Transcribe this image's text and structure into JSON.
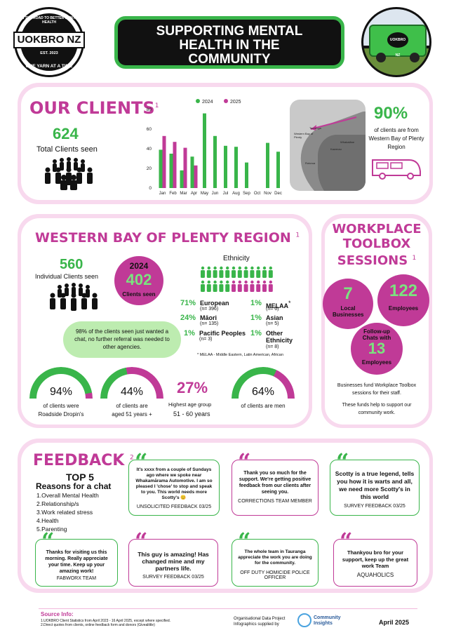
{
  "header": {
    "logo": {
      "name": "UOKBRO NZ",
      "arc_top": "ON THE ROAD TO BETTER MENTAL HEALTH",
      "est": "EST.",
      "year": "2023",
      "tagline": "ONE YARN AT A TIME"
    },
    "title": [
      "SUPPORTING MENTAL",
      "HEALTH IN THE",
      "COMMUNITY"
    ],
    "van_badge": "UOKBRO NZ"
  },
  "our_clients": {
    "title": "OUR CLIENTS",
    "footnote": "1",
    "total": "624",
    "total_label": "Total Clients seen",
    "pct": "90%",
    "pct_label": "of clients are from Western Bay of Plenty Region",
    "map_labels": [
      "Tauranga",
      "Western Bay of Plenty",
      "Rotorua",
      "Whakatāne",
      "Kawerau"
    ]
  },
  "chart_data": {
    "type": "bar",
    "categories": [
      "Jan",
      "Feb",
      "Mar",
      "Apr",
      "May",
      "Jun",
      "Jul",
      "Aug",
      "Sep",
      "Oct",
      "Nov",
      "Dec"
    ],
    "series": [
      {
        "name": "2024",
        "values": [
          39,
          35,
          18,
          32,
          76,
          53,
          43,
          42,
          26,
          0,
          46,
          37
        ]
      },
      {
        "name": "2025",
        "values": [
          53,
          47,
          41,
          23,
          null,
          null,
          null,
          null,
          null,
          null,
          null,
          null
        ]
      }
    ],
    "yticks": [
      0,
      20,
      40,
      60,
      80
    ],
    "ylim": [
      0,
      80
    ],
    "legend_position": "top",
    "colors": {
      "2024": "#39b54a",
      "2025": "#c03a97"
    }
  },
  "western_bay": {
    "title": "WESTERN BAY OF PLENTY REGION",
    "footnote": "1",
    "individual": "560",
    "individual_label": "Individual Clients seen",
    "year_circle": {
      "year": "2024",
      "value": "402",
      "label": "Clients seen"
    },
    "bubble": "98% of the clients seen just wanted a chat, no further referral was needed to other agencies.",
    "ethnicity_title": "Ethnicity",
    "ethnicity": [
      {
        "pct": "71%",
        "name": "European",
        "n": "(n= 396)"
      },
      {
        "pct": "24%",
        "name": "Māori",
        "n": "(n= 135)"
      },
      {
        "pct": "1%",
        "name": "Pacific Peoples",
        "n": "(n= 3)"
      },
      {
        "pct": "1%",
        "name": "MELAA",
        "n": "(n= 6)"
      },
      {
        "pct": "1%",
        "name": "Asian",
        "n": "(n= 5)"
      },
      {
        "pct": "1%",
        "name": "Other Ethnicity",
        "n": "(n= 8)"
      }
    ],
    "melaa_mark": "*",
    "ethnicity_note": "* MELAA - Middle Eastern, Latin American, African",
    "donuts": [
      {
        "value": "94%",
        "fraction": 0.94,
        "label1": "of clients were",
        "label2": "Roadside Dropin's"
      },
      {
        "value": "44%",
        "fraction": 0.44,
        "label1": "of clients are",
        "label2": "aged 51 years +"
      },
      {
        "value": "64%",
        "fraction": 0.64,
        "label1": "of clients are men",
        "label2": ""
      }
    ],
    "age": {
      "value": "27%",
      "label": "Highest age group",
      "range": "51 - 60 years"
    }
  },
  "workplace": {
    "title": "WORKPLACE TOOLBOX SESSIONS",
    "footnote": "1",
    "businesses": {
      "value": "7",
      "label": "Local Businesses"
    },
    "employees": {
      "value": "122",
      "label": "Employees"
    },
    "followup": {
      "label_top": "Follow-up Chats with",
      "value": "13",
      "label": "Employees"
    },
    "note1": "Businesses fund Workplace Toolbox sessions for their staff.",
    "note2": "These funds help to support our community work."
  },
  "feedback": {
    "title": "FEEDBACK",
    "footnote": "2",
    "top5_title": "TOP 5",
    "top5_sub": "Reasons for a chat",
    "top5": [
      "1.Overall Mental Health",
      "2.Relationship/s",
      "3.Work related stress",
      "4.Health",
      "5.Parenting"
    ],
    "quote_mark": "“",
    "cards": [
      {
        "text": "It's xxxx from a couple of Sundays ago where we spoke near Whakamārama Automotive. I am so pleased I 'chose' to stop and speak to you. This world needs more Scotty's 😊",
        "author": "UNSOLICITED FEEDBACK 03/25"
      },
      {
        "text": "Thank you so much for the support. We're getting positive feedback from our clients after seeing you.",
        "author": "CORRECTIONS TEAM MEMBER"
      },
      {
        "text": "Scotty is a true legend, tells you how it is warts and all, we need more Scotty's in this world",
        "author": "SURVEY FEEDBACK 03/25"
      },
      {
        "text": "Thanks for visiting us this morning. Really appreciate your time. Keep up your amazing work!",
        "author": "FABWORX TEAM"
      },
      {
        "text": "This guy is amazing! Has changed mine and my partners life.",
        "author": "SURVEY FEEDBACK 03/25"
      },
      {
        "text": "The whole team in Tauranga appreciate the work you are doing for the community.",
        "author": "OFF DUTY HOMICIDE POLICE OFFICER"
      },
      {
        "text": "Thankyou bro for your support, keep up the great work Team",
        "author": "AQUAHOLICS"
      }
    ]
  },
  "footer": {
    "source_title": "Source Info:",
    "source1": "1.UOKBRO Client Statistics from April 2023 - 16 April 2025, except where specified.",
    "source2": "2.Direct quotes from clients, online feedback form and donors (Givealittle)",
    "org_line1": "Organisational Data Project",
    "org_line2": "Infographics supplied by",
    "ci_line1": "Community",
    "ci_line2": "Insights",
    "date": "April 2025"
  }
}
